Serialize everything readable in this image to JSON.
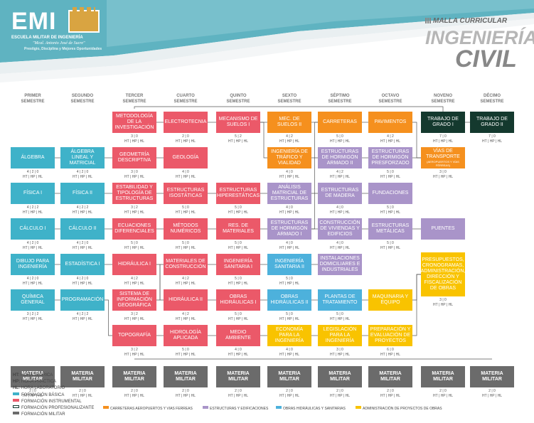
{
  "header": {
    "logo_text": "EMI",
    "school": "ESCUELA MILITAR DE INGENIERÍA",
    "name": "\"Mcal. Antonio José de Sucre\"",
    "motto": "Prestigio, Disciplina y Mejores Oportunidades",
    "malla": "MALLA CURRICULAR",
    "title1": "INGENIERÍA",
    "title2": "CIVIL",
    "accent": "#5fb3c1"
  },
  "semesters": [
    {
      "line1": "PRIMER",
      "line2": "SEMESTRE"
    },
    {
      "line1": "SEGUNDO",
      "line2": "SEMESTRE"
    },
    {
      "line1": "TERCER",
      "line2": "SEMESTRE"
    },
    {
      "line1": "CUARTO",
      "line2": "SEMESTRE"
    },
    {
      "line1": "QUINTO",
      "line2": "SEMESTRE"
    },
    {
      "line1": "SEXTO",
      "line2": "SEMESTRE"
    },
    {
      "line1": "SÉPTIMO",
      "line2": "SEMESTRE"
    },
    {
      "line1": "OCTAVO",
      "line2": "SEMESTRE"
    },
    {
      "line1": "NOVENO",
      "line2": "SEMESTRE"
    },
    {
      "line1": "DÉCIMO",
      "line2": "SEMESTRE"
    }
  ],
  "colors": {
    "basica": "#3fb2c9",
    "instrumental": "#eb5969",
    "profesionalizante": "#ffffff",
    "militar": "#6b6b6b",
    "carreteras": "#f5901e",
    "estructuras": "#a994c9",
    "obras": "#4db1dc",
    "administracion": "#f9c300",
    "grado": "#14392e"
  },
  "subjects": [
    {
      "sem": 0,
      "row": 1,
      "name": "ÁLGEBRA",
      "type": "basica",
      "c1": "4 | 2 | 0",
      "c2": "HT | HP | HL"
    },
    {
      "sem": 0,
      "row": 2,
      "name": "FÍSICA I",
      "type": "basica",
      "c1": "4 | 2 | 2",
      "c2": "HT | HP | HL"
    },
    {
      "sem": 0,
      "row": 3,
      "name": "CÁLCULO I",
      "type": "basica",
      "c1": "4 | 2 | 0",
      "c2": "HT | HP | HL"
    },
    {
      "sem": 0,
      "row": 4,
      "name": "DIBUJO PARA INGENIERÍA",
      "type": "basica",
      "c1": "4 | 2 | 0",
      "c2": "HT | HP | HL"
    },
    {
      "sem": 0,
      "row": 5,
      "name": "QUÍMICA GENERAL",
      "type": "basica",
      "c1": "3 | 2 | 2",
      "c2": "HT | HP | HL"
    },
    {
      "sem": 1,
      "row": 1,
      "name": "ÁLGEBRA LINEAL Y MATRICIAL",
      "type": "basica",
      "c1": "4 | 2 | 0",
      "c2": "HT | HP | HL"
    },
    {
      "sem": 1,
      "row": 2,
      "name": "FÍSICA II",
      "type": "basica",
      "c1": "4 | 2 | 2",
      "c2": "HT | HP | HL"
    },
    {
      "sem": 1,
      "row": 3,
      "name": "CÁLCULO II",
      "type": "basica",
      "c1": "4 | 2 | 0",
      "c2": "HT | HP | HL"
    },
    {
      "sem": 1,
      "row": 4,
      "name": "ESTADÍSTICA I",
      "type": "basica",
      "c1": "4 | 2 | 0",
      "c2": "HT | HP | HL"
    },
    {
      "sem": 1,
      "row": 5,
      "name": "PROGRAMACIÓN",
      "type": "basica",
      "c1": "4 | 2 | 2",
      "c2": "HT | HP | HL"
    },
    {
      "sem": 2,
      "row": 0,
      "name": "METODOLOGÍA DE LA INVESTIGACIÓN",
      "type": "instrumental",
      "c1": "3 | 0",
      "c2": "HT | HP | HL"
    },
    {
      "sem": 2,
      "row": 1,
      "name": "GEOMETRÍA DESCRIPTIVA",
      "type": "instrumental",
      "c1": "3 | 0",
      "c2": "HT | HP | HL"
    },
    {
      "sem": 2,
      "row": 2,
      "name": "ESTABILIDAD Y TIPOLOGÍA DE ESTRUCTURAS",
      "type": "instrumental",
      "c1": "3 | 2",
      "c2": "HT | HP | HL"
    },
    {
      "sem": 2,
      "row": 3,
      "name": "ECUACIONES DIFERENCIALES",
      "type": "instrumental",
      "c1": "5 | 0",
      "c2": "HT | HP | HL"
    },
    {
      "sem": 2,
      "row": 4,
      "name": "HIDRÁULICA I",
      "type": "instrumental",
      "c1": "4 | 2",
      "c2": "HT | HP | HL"
    },
    {
      "sem": 2,
      "row": 5,
      "name": "SISTEMA DE INFORMACIÓN GEOGRÁFICA",
      "type": "instrumental",
      "c1": "3 | 2",
      "c2": "HT | HP | HL"
    },
    {
      "sem": 2,
      "row": 6,
      "name": "TOPOGRAFÍA",
      "type": "instrumental",
      "c1": "3 | 2",
      "c2": "HT | HP | HL"
    },
    {
      "sem": 3,
      "row": 0,
      "name": "ELECTROTECNIA",
      "type": "instrumental",
      "c1": "2 | 0",
      "c2": "HT | HP | HL"
    },
    {
      "sem": 3,
      "row": 1,
      "name": "GEOLOGÍA",
      "type": "instrumental",
      "c1": "4 | 0",
      "c2": "HT | HP | HL"
    },
    {
      "sem": 3,
      "row": 2,
      "name": "ESTRUCTURAS ISOSTÁTICAS",
      "type": "instrumental",
      "c1": "5 | 0",
      "c2": "HT | HP | HL"
    },
    {
      "sem": 3,
      "row": 3,
      "name": "MÉTODOS NUMÉRICOS",
      "type": "instrumental",
      "c1": "5 | 0",
      "c2": "HT | HP | HL"
    },
    {
      "sem": 3,
      "row": 4,
      "name": "MATERIALES DE CONSTRUCCIÓN",
      "type": "instrumental",
      "c1": "4 | 2",
      "c2": "HT | HP | HL"
    },
    {
      "sem": 3,
      "row": 5,
      "name": "HIDRÁULICA II",
      "type": "instrumental",
      "c1": "4 | 2",
      "c2": "HT | HP | HL"
    },
    {
      "sem": 3,
      "row": 6,
      "name": "HIDROLOGÍA APLICADA",
      "type": "instrumental",
      "c1": "5 | 0",
      "c2": "HT | HP | HL"
    },
    {
      "sem": 4,
      "row": 0,
      "name": "MECANISMO DE SUELOS I",
      "type": "instrumental",
      "c1": "5 | 2",
      "c2": "HT | HP | HL"
    },
    {
      "sem": 4,
      "row": 2,
      "name": "ESTRUCTURAS HIPERESTÁTICAS",
      "type": "instrumental",
      "c1": "5 | 0",
      "c2": "HT | HP | HL"
    },
    {
      "sem": 4,
      "row": 3,
      "name": "RES. DE MATERIALES",
      "type": "instrumental",
      "c1": "5 | 0",
      "c2": "HT | HP | HL"
    },
    {
      "sem": 4,
      "row": 4,
      "name": "INGENIERÍA SANITARIA I",
      "type": "instrumental",
      "c1": "5 | 0",
      "c2": "HT | HP | HL"
    },
    {
      "sem": 4,
      "row": 5,
      "name": "OBRAS HIDRÁULICAS I",
      "type": "instrumental",
      "c1": "5 | 0",
      "c2": "HT | HP | HL"
    },
    {
      "sem": 4,
      "row": 6,
      "name": "MEDIO AMBIENTE",
      "type": "instrumental",
      "c1": "4 | 0",
      "c2": "HT | HP | HL"
    },
    {
      "sem": 5,
      "row": 0,
      "name": "MEC. DE SUELOS II",
      "type": "carreteras",
      "c1": "4 | 2",
      "c2": "HT | HP | HL"
    },
    {
      "sem": 5,
      "row": 1,
      "name": "INGENIERÍA DE TRÁFICO Y VIALIDAD",
      "type": "carreteras",
      "c1": "4 | 0",
      "c2": "HT | HP | HL"
    },
    {
      "sem": 5,
      "row": 2,
      "name": "ANÁLISIS MATRICIAL DE ESTRUCTURAS",
      "type": "estructuras",
      "c1": "4 | 0",
      "c2": "HT | HP | HL"
    },
    {
      "sem": 5,
      "row": 3,
      "name": "ESTRUCTURAS DE HORMIGÓN ARMADO I",
      "type": "estructuras",
      "c1": "4 | 0",
      "c2": "HT | HP | HL"
    },
    {
      "sem": 5,
      "row": 4,
      "name": "INGENIERÍA SANITARIA II",
      "type": "obras",
      "c1": "5 | 0",
      "c2": "HT | HP | HL"
    },
    {
      "sem": 5,
      "row": 5,
      "name": "OBRAS HIDRÁULICAS II",
      "type": "obras",
      "c1": "5 | 0",
      "c2": "HT | HP | HL"
    },
    {
      "sem": 5,
      "row": 6,
      "name": "ECONOMÍA PARA LA INGENIERÍA",
      "type": "administracion",
      "c1": "4 | 0",
      "c2": "HT | HP | HL"
    },
    {
      "sem": 6,
      "row": 0,
      "name": "CARRETERAS",
      "type": "carreteras",
      "c1": "5 | 0",
      "c2": "HT | HP | HL"
    },
    {
      "sem": 6,
      "row": 1,
      "name": "ESTRUCTURAS DE HORMIGÓN ARMADO II",
      "type": "estructuras",
      "c1": "4 | 2",
      "c2": "HT | HP | HL"
    },
    {
      "sem": 6,
      "row": 2,
      "name": "ESTRUCTURAS DE MADERA",
      "type": "estructuras",
      "c1": "4 | 0",
      "c2": "HT | HP | HL"
    },
    {
      "sem": 6,
      "row": 3,
      "name": "CONSTRUCCIÓN DE VIVIENDAS Y EDIFICIOS",
      "type": "estructuras",
      "c1": "4 | 0",
      "c2": "HT | HP | HL"
    },
    {
      "sem": 6,
      "row": 4,
      "name": "INSTALACIONES DOMICILIARES E INDUSTRIALES",
      "type": "estructuras",
      "c1": "",
      "c2": ""
    },
    {
      "sem": 6,
      "row": 5,
      "name": "PLANTAS DE TRATAMIENTO",
      "type": "obras",
      "c1": "5 | 0",
      "c2": "HT | HP | HL"
    },
    {
      "sem": 6,
      "row": 6,
      "name": "LEGISLACIÓN PARA LA INGENIERÍA",
      "type": "administracion",
      "c1": "3 | 0",
      "c2": "HT | HP | HL"
    },
    {
      "sem": 7,
      "row": 0,
      "name": "PAVIMENTOS",
      "type": "carreteras",
      "c1": "4 | 2",
      "c2": "HT | HP | HL"
    },
    {
      "sem": 7,
      "row": 1,
      "name": "ESTRUCTURAS DE HORMIGÓN PRESFORZADO",
      "type": "estructuras",
      "c1": "5 | 0",
      "c2": "HT | HP | HL"
    },
    {
      "sem": 7,
      "row": 2,
      "name": "FUNDACIONES",
      "type": "estructuras",
      "c1": "5 | 0",
      "c2": "HT | HP | HL"
    },
    {
      "sem": 7,
      "row": 3,
      "name": "ESTRUCTURAS METÁLICAS",
      "type": "estructuras",
      "c1": "5 | 0",
      "c2": "HT | HP | HL"
    },
    {
      "sem": 7,
      "row": 5,
      "name": "MAQUINARIA Y EQUIPO",
      "type": "administracion",
      "c1": "",
      "c2": ""
    },
    {
      "sem": 7,
      "row": 6,
      "name": "PREPARACIÓN Y EVALUACIÓN DE PROYECTOS",
      "type": "administracion",
      "c1": "6 | 0",
      "c2": "HT | HP | HL"
    },
    {
      "sem": 8,
      "row": 0,
      "name": "TRABAJO DE GRADO I",
      "type": "grado",
      "c1": "7 | 0",
      "c2": "HT | HP | HL"
    },
    {
      "sem": 8,
      "row": 1,
      "name": "VÍAS DE TRANSPORTE",
      "sub": "(AEROPUERTOS Y VÍAS FÉRREAS)",
      "type": "carreteras",
      "c1": "3 | 0",
      "c2": "HT | HP | HL"
    },
    {
      "sem": 8,
      "row": 3,
      "name": "PUENTES",
      "type": "estructuras",
      "c1": "",
      "c2": ""
    },
    {
      "sem": 8,
      "row": 45,
      "name": "PRESUPUESTOS, CRONOGRAMAS, ADMINISTRACIÓN, DIRECCIÓN Y FISCALIZACIÓN DE OBRAS",
      "type": "administracion",
      "c1": "3 | 0",
      "c2": "HT | HP | HL"
    },
    {
      "sem": 9,
      "row": 0,
      "name": "TRABAJO DE GRADO II",
      "type": "grado",
      "c1": "7 | 0",
      "c2": "HT | HP | HL"
    },
    {
      "sem": 0,
      "row": 7,
      "name": "MATERIA MILITAR",
      "type": "militar",
      "c1": "2 | 0",
      "c2": "HT | HP | HL"
    },
    {
      "sem": 1,
      "row": 7,
      "name": "MATERIA MILITAR",
      "type": "militar",
      "c1": "2 | 0",
      "c2": "HT | HP | HL"
    },
    {
      "sem": 2,
      "row": 7,
      "name": "MATERIA MILITAR",
      "type": "militar",
      "c1": "2 | 0",
      "c2": "HT | HP | HL"
    },
    {
      "sem": 3,
      "row": 7,
      "name": "MATERIA MILITAR",
      "type": "militar",
      "c1": "2 | 0",
      "c2": "HT | HP | HL"
    },
    {
      "sem": 4,
      "row": 7,
      "name": "MATERIA MILITAR",
      "type": "militar",
      "c1": "2 | 0",
      "c2": "HT | HP | HL"
    },
    {
      "sem": 5,
      "row": 7,
      "name": "MATERIA MILITAR",
      "type": "militar",
      "c1": "2 | 0",
      "c2": "HT | HP | HL"
    },
    {
      "sem": 6,
      "row": 7,
      "name": "MATERIA MILITAR",
      "type": "militar",
      "c1": "2 | 0",
      "c2": "HT | HP | HL"
    },
    {
      "sem": 7,
      "row": 7,
      "name": "MATERIA MILITAR",
      "type": "militar",
      "c1": "2 | 0",
      "c2": "HT | HP | HL"
    },
    {
      "sem": 8,
      "row": 7,
      "name": "MATERIA MILITAR",
      "type": "militar",
      "c1": "2 | 0",
      "c2": "HT | HP | HL"
    },
    {
      "sem": 9,
      "row": 7,
      "name": "MATERIA MILITAR",
      "type": "militar",
      "c1": "2 | 0",
      "c2": "HT | HP | HL"
    }
  ],
  "legend": {
    "ht": {
      "key": "HT:",
      "text": "HORA TEÓRICA"
    },
    "hp": {
      "key": "HP:",
      "text": "HORA PRÁCTICA"
    },
    "hl": {
      "key": "HL:",
      "text": "HORA LABORATORIO"
    },
    "basica": "FORMACIÓN BÁSICA",
    "instrumental": "FORMACIÓN INSTRUMENTAL",
    "profesionalizante": "FORMACIÓN PROFESIONALIZANTE",
    "militar": "FORMACIÓN MILITAR",
    "carreteras": "CARRETERAS AEROPUERTOS Y VIAS FERREAS",
    "estructuras": "ESTRUCTURAS Y EDIFICACIONES",
    "obras": "OBRAS HIDRÁULICAS Y SANITARIAS",
    "administracion": "ADMINISTRACIÓN DE PROYECTOS DE OBRAS"
  }
}
